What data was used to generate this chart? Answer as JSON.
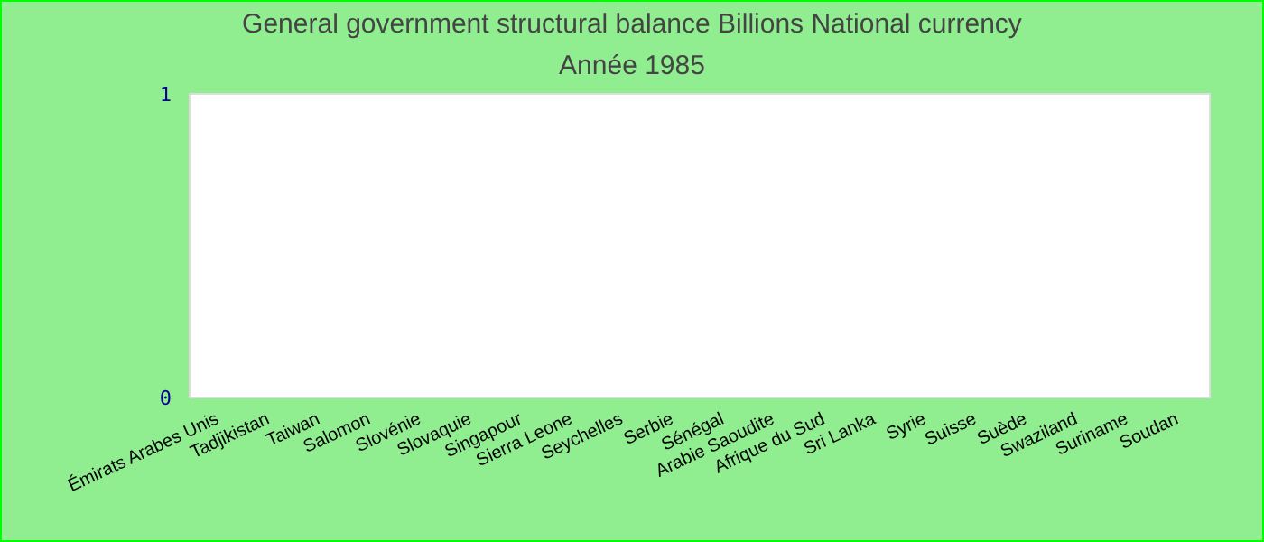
{
  "chart_data": {
    "type": "bar",
    "title": "General government structural balance Billions National currency",
    "subtitle": "Année 1985",
    "categories": [
      "Émirats Arabes Unis",
      "Tadjikistan",
      "Taiwan",
      "Salomon",
      "Slovénie",
      "Slovaquie",
      "Singapour",
      "Sierra Leone",
      "Seychelles",
      "Serbie",
      "Sénégal",
      "Arabie Saoudite",
      "Afrique du Sud",
      "Sri Lanka",
      "Syrie",
      "Suisse",
      "Suède",
      "Swaziland",
      "Suriname",
      "Soudan"
    ],
    "values": [
      0,
      0,
      0,
      0,
      0,
      0,
      0,
      0,
      0,
      0,
      0,
      0,
      0,
      0,
      0,
      0,
      0,
      0,
      0,
      0
    ],
    "ylim": [
      0,
      1
    ],
    "yticks": [
      0,
      1
    ],
    "grid": false
  }
}
